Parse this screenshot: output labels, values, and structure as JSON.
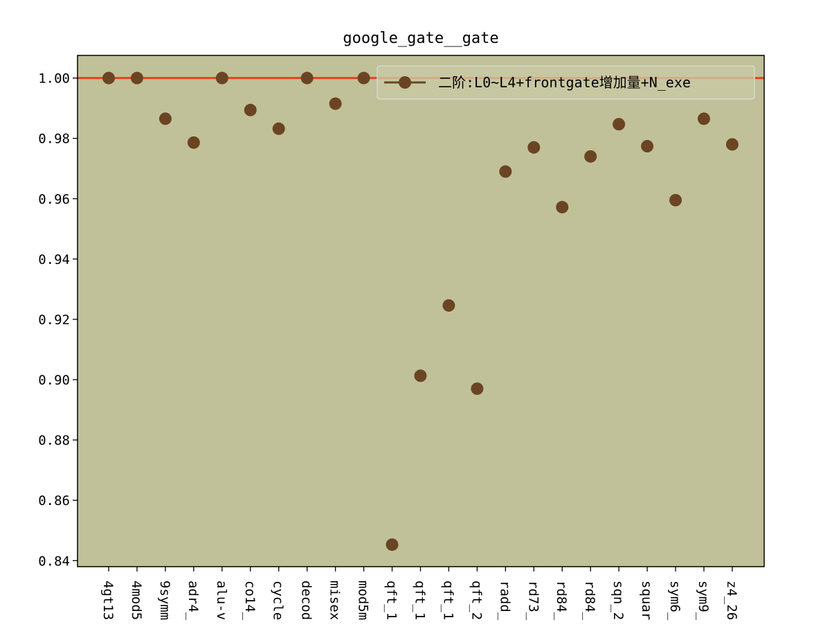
{
  "chart_data": {
    "type": "scatter",
    "title": "google_gate__gate",
    "xlabel": "",
    "ylabel": "",
    "categories": [
      "4gt13",
      "4mod5",
      "9symm",
      "adr4_",
      "alu-v",
      "co14_",
      "cycle",
      "decod",
      "misex",
      "mod5m",
      "qft_1",
      "qft_1",
      "qft_1",
      "qft_2",
      "radd_",
      "rd73_",
      "rd84_",
      "rd84_",
      "sqn_2",
      "squar",
      "sym6_",
      "sym9_",
      "z4_26"
    ],
    "series": [
      {
        "name": "二阶:L0~L4+frontgate增加量+N_exe",
        "color": "#6b4423",
        "values": [
          1.0,
          1.0,
          0.9865,
          0.9786,
          1.0,
          0.9894,
          0.9832,
          1.0,
          0.9915,
          1.0,
          0.8453,
          0.9013,
          0.9246,
          0.897,
          0.969,
          0.977,
          0.9572,
          0.974,
          0.9847,
          0.9774,
          0.9595,
          0.9865,
          0.978
        ]
      }
    ],
    "reference_line": {
      "y": 1.0,
      "color": "#e8401c"
    },
    "ylim": [
      0.838,
      1.0075
    ],
    "yticks": [
      0.84,
      0.86,
      0.88,
      0.9,
      0.92,
      0.94,
      0.96,
      0.98,
      1.0
    ],
    "ytick_labels": [
      "0.84",
      "0.86",
      "0.88",
      "0.90",
      "0.92",
      "0.94",
      "0.96",
      "0.98",
      "1.00"
    ],
    "grid": false,
    "legend_position": "upper-right",
    "background_color": "#c0c198"
  }
}
